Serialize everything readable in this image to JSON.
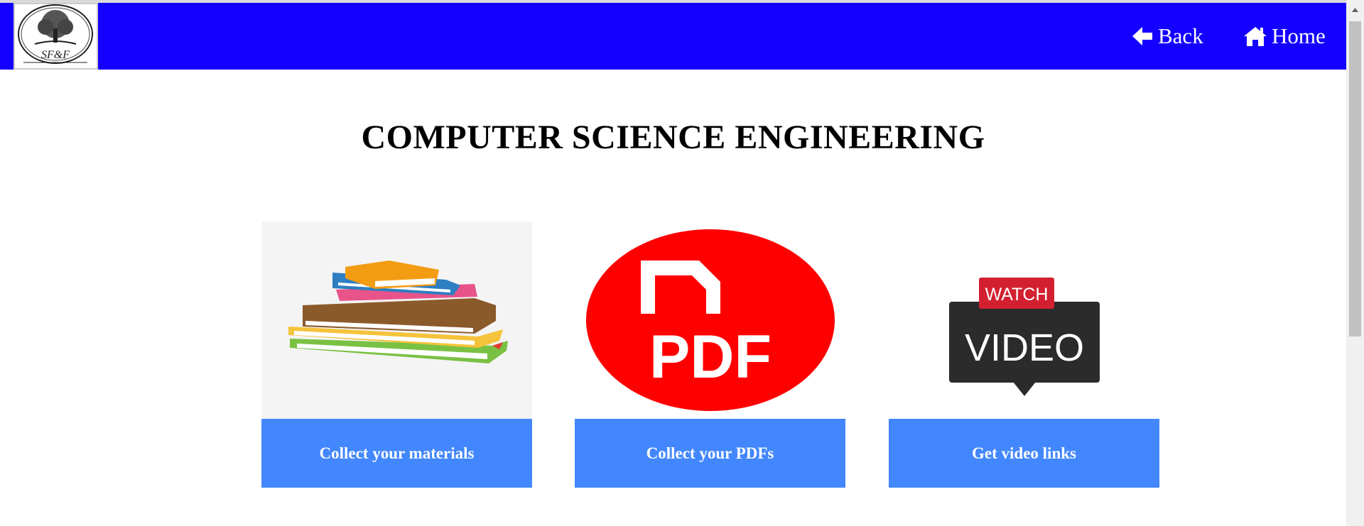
{
  "header": {
    "logo_text": "SF&F",
    "back_label": "Back",
    "home_label": "Home",
    "bar_color": "#1400ff",
    "back_icon": "arrow-left-icon",
    "home_icon": "home-icon"
  },
  "main": {
    "title": "COMPUTER SCIENCE ENGINEERING",
    "cards": [
      {
        "image": "books-stack-image",
        "button_label": "Collect your materials"
      },
      {
        "image": "pdf-logo-image",
        "image_text": "PDF",
        "button_label": "Collect your PDFs"
      },
      {
        "image": "watch-video-image",
        "image_text_top": "WATCH",
        "image_text_bottom": "VIDEO",
        "button_label": "Get video links"
      }
    ],
    "button_color": "#4287fd"
  }
}
